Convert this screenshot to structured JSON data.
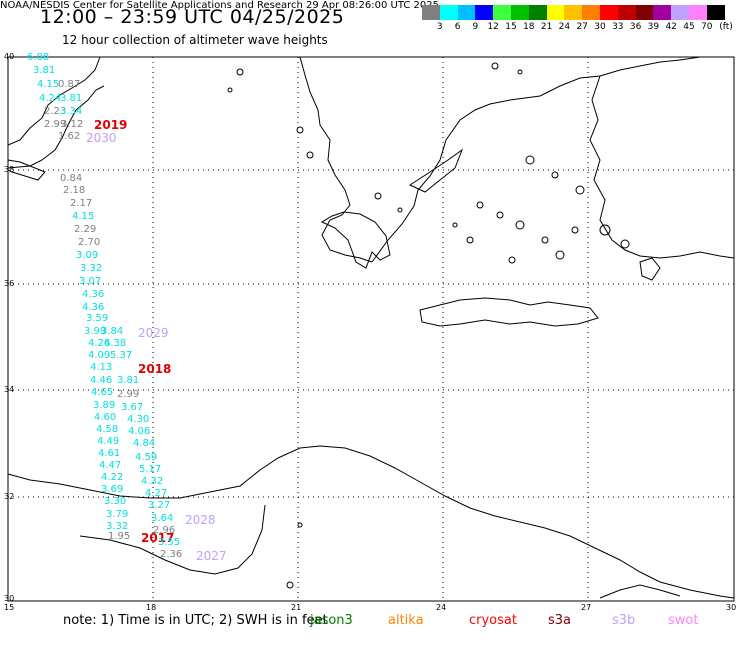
{
  "header": {
    "title": "12:00 – 23:59 UTC 04/25/2025",
    "subtitle": "12 hour collection of altimeter wave heights"
  },
  "legend": {
    "unit": "(ft)",
    "ticks": [
      "3",
      "6",
      "9",
      "12",
      "15",
      "18",
      "21",
      "24",
      "27",
      "30",
      "33",
      "36",
      "39",
      "42",
      "45",
      "70"
    ],
    "colors": [
      "#808080",
      "#00ffff",
      "#00c0ff",
      "#0000ff",
      "#40ff40",
      "#00c000",
      "#008000",
      "#ffff00",
      "#ffc000",
      "#ff8000",
      "#ff0000",
      "#c00000",
      "#800000",
      "#a000a0",
      "#c0a0ff",
      "#ff80ff",
      "#000000"
    ]
  },
  "axes": {
    "lat_labels": [
      "40",
      "38",
      "36",
      "34",
      "32",
      "30"
    ],
    "lon_labels": [
      "15",
      "18",
      "21",
      "24",
      "27",
      "30"
    ]
  },
  "footer": {
    "note": "note: 1) Time is in UTC; 2) SWH is in feet",
    "satellites": [
      {
        "name": "jason3",
        "color": "#008000"
      },
      {
        "name": "altika",
        "color": "#ff8000"
      },
      {
        "name": "cryosat",
        "color": "#ff0000"
      },
      {
        "name": "s3a",
        "color": "#800000"
      },
      {
        "name": "s3b",
        "color": "#c0a0ff"
      },
      {
        "name": "swot",
        "color": "#ff80ff"
      }
    ],
    "credit": "NOAA/NESDIS Center for Satellite Applications and Research   29 Apr 08:26:00 UTC 2025"
  },
  "track_labels": [
    {
      "text": "6.88",
      "color": "#00e0e0"
    },
    {
      "text": "3.81",
      "color": "#00e0e0"
    },
    {
      "text": "4.15",
      "color": "#00e0e0"
    },
    {
      "text": "0.87",
      "color": "#808080"
    },
    {
      "text": "4.24",
      "color": "#00e0e0"
    },
    {
      "text": "3.81",
      "color": "#00e0e0"
    },
    {
      "text": "2.23",
      "color": "#808080"
    },
    {
      "text": "3.34",
      "color": "#00e0e0"
    },
    {
      "text": "2.99",
      "color": "#808080"
    },
    {
      "text": "3.12",
      "color": "#808080"
    },
    {
      "text": "2019",
      "color": "#e00000"
    },
    {
      "text": "1.62",
      "color": "#808080"
    },
    {
      "text": "2030",
      "color": "#c0a0ff"
    },
    {
      "text": "0.84",
      "color": "#808080"
    },
    {
      "text": "2.18",
      "color": "#808080"
    },
    {
      "text": "2.17",
      "color": "#808080"
    },
    {
      "text": "4.15",
      "color": "#00e0e0"
    },
    {
      "text": "2.29",
      "color": "#808080"
    },
    {
      "text": "2.70",
      "color": "#808080"
    },
    {
      "text": "3.09",
      "color": "#00e0e0"
    },
    {
      "text": "3.32",
      "color": "#00e0e0"
    },
    {
      "text": "3.07",
      "color": "#00e0e0"
    },
    {
      "text": "4.36",
      "color": "#00e0e0"
    },
    {
      "text": "4.36",
      "color": "#00e0e0"
    },
    {
      "text": "3.59",
      "color": "#00e0e0"
    },
    {
      "text": "3.99",
      "color": "#00e0e0"
    },
    {
      "text": "3.84",
      "color": "#00e0e0"
    },
    {
      "text": "2029",
      "color": "#c0a0ff"
    },
    {
      "text": "4.26",
      "color": "#00e0e0"
    },
    {
      "text": "4.38",
      "color": "#00e0e0"
    },
    {
      "text": "4.09",
      "color": "#00e0e0"
    },
    {
      "text": "5.37",
      "color": "#00e0e0"
    },
    {
      "text": "4.13",
      "color": "#00e0e0"
    },
    {
      "text": "2018",
      "color": "#e00000"
    },
    {
      "text": "4.46",
      "color": "#00e0e0"
    },
    {
      "text": "3.81",
      "color": "#00e0e0"
    },
    {
      "text": "4.65",
      "color": "#00e0e0"
    },
    {
      "text": "2.99",
      "color": "#808080"
    },
    {
      "text": "3.89",
      "color": "#00e0e0"
    },
    {
      "text": "3.67",
      "color": "#00e0e0"
    },
    {
      "text": "4.60",
      "color": "#00e0e0"
    },
    {
      "text": "4.30",
      "color": "#00e0e0"
    },
    {
      "text": "4.58",
      "color": "#00e0e0"
    },
    {
      "text": "4.06",
      "color": "#00e0e0"
    },
    {
      "text": "4.49",
      "color": "#00e0e0"
    },
    {
      "text": "4.84",
      "color": "#00e0e0"
    },
    {
      "text": "4.61",
      "color": "#00e0e0"
    },
    {
      "text": "4.59",
      "color": "#00e0e0"
    },
    {
      "text": "4.47",
      "color": "#00e0e0"
    },
    {
      "text": "5.17",
      "color": "#00e0e0"
    },
    {
      "text": "4.22",
      "color": "#00e0e0"
    },
    {
      "text": "4.32",
      "color": "#00e0e0"
    },
    {
      "text": "3.69",
      "color": "#00e0e0"
    },
    {
      "text": "4.27",
      "color": "#00e0e0"
    },
    {
      "text": "3.30",
      "color": "#00e0e0"
    },
    {
      "text": "3.27",
      "color": "#00e0e0"
    },
    {
      "text": "3.79",
      "color": "#00e0e0"
    },
    {
      "text": "3.64",
      "color": "#00e0e0"
    },
    {
      "text": "2028",
      "color": "#c0a0ff"
    },
    {
      "text": "3.32",
      "color": "#00e0e0"
    },
    {
      "text": "2.96",
      "color": "#808080"
    },
    {
      "text": "1.95",
      "color": "#808080"
    },
    {
      "text": "2017",
      "color": "#e00000"
    },
    {
      "text": "3.55",
      "color": "#00e0e0"
    },
    {
      "text": "2.36",
      "color": "#808080"
    },
    {
      "text": "2027",
      "color": "#c0a0ff"
    }
  ]
}
